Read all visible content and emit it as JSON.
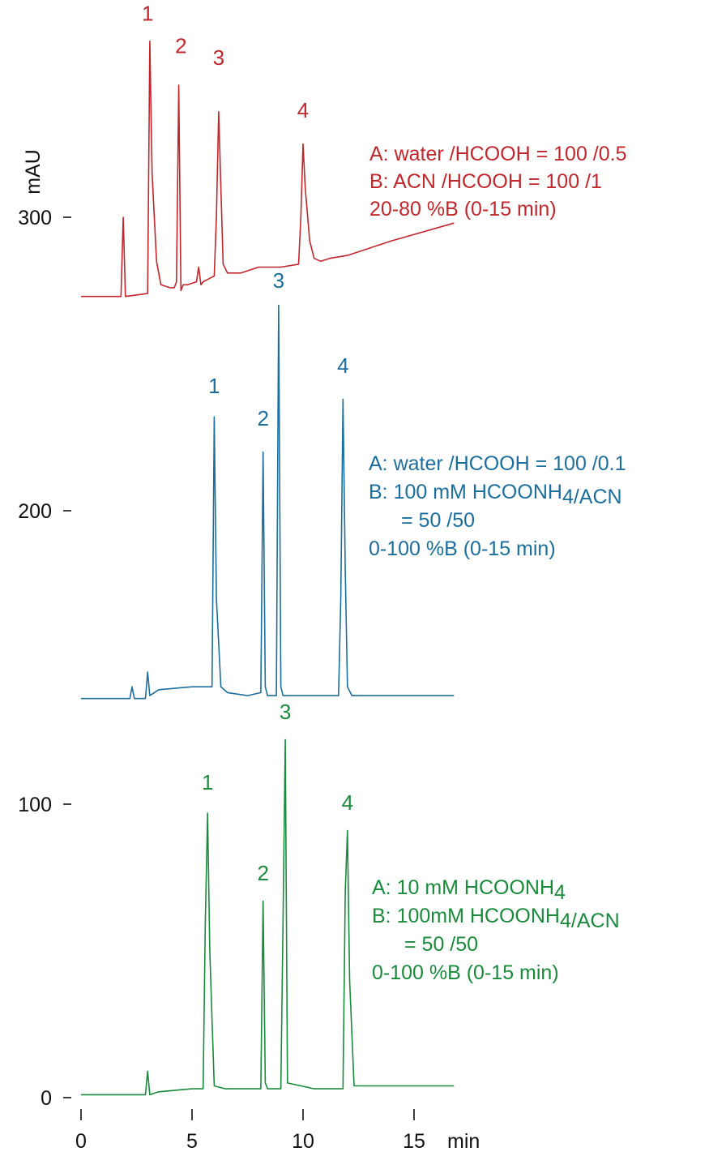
{
  "chart_data": {
    "type": "line",
    "title": "",
    "ylabel": "mAU",
    "xunit": "min",
    "xlim": [
      0,
      16.8
    ],
    "ylim": [
      0,
      380
    ],
    "x_ticks": [
      0,
      5,
      10,
      15
    ],
    "y_ticks": [
      0,
      100,
      200,
      300
    ],
    "series": [
      {
        "color": "#c0272d",
        "x": [
          0,
          1.8,
          1.9,
          2.0,
          3.0,
          3.1,
          3.2,
          3.4,
          3.6,
          4.0,
          4.2,
          4.3,
          4.4,
          4.5,
          4.6,
          4.8,
          5.2,
          5.3,
          5.4,
          5.5,
          6.0,
          6.1,
          6.2,
          6.3,
          6.4,
          6.6,
          6.8,
          7.2,
          8,
          9,
          9.8,
          9.9,
          10.0,
          10.1,
          10.3,
          10.5,
          10.8,
          11.2,
          12,
          14,
          16.8
        ],
        "y": [
          273,
          273,
          300,
          273,
          274,
          360,
          315,
          285,
          277,
          276,
          276,
          278,
          345,
          275,
          277,
          277,
          278,
          283,
          277,
          278,
          280,
          300,
          336,
          310,
          284,
          281,
          281,
          281,
          283,
          283,
          284,
          300,
          325,
          310,
          292,
          286,
          285,
          286,
          287,
          292,
          298
        ]
      },
      {
        "color": "#1c6e9c",
        "x": [
          0,
          2.2,
          2.3,
          2.4,
          2.9,
          3.0,
          3.1,
          3.5,
          5,
          5.9,
          6.0,
          6.1,
          6.3,
          6.6,
          7.5,
          8.1,
          8.2,
          8.3,
          8.4,
          8.8,
          8.9,
          9.0,
          9.1,
          10.5,
          11.6,
          11.7,
          11.8,
          11.9,
          12.0,
          12.2,
          14,
          16.8
        ],
        "y": [
          136,
          136,
          140,
          136,
          136,
          145,
          137,
          139,
          140,
          140,
          232,
          170,
          140,
          138,
          137,
          138,
          220,
          140,
          137,
          137,
          270,
          140,
          137,
          137,
          137,
          170,
          238,
          180,
          140,
          137,
          137,
          137
        ]
      },
      {
        "color": "#1a8a3c",
        "x": [
          0,
          2.9,
          3.0,
          3.1,
          3.5,
          5,
          5.5,
          5.6,
          5.7,
          5.8,
          6.0,
          6.5,
          7.5,
          8.1,
          8.2,
          8.3,
          8.4,
          9.0,
          9.1,
          9.2,
          9.3,
          10.5,
          11.8,
          11.9,
          12.0,
          12.1,
          12.3,
          14,
          16.8
        ],
        "y": [
          1,
          1,
          9,
          1,
          2,
          3,
          3,
          60,
          97,
          50,
          4,
          3,
          3,
          3,
          67,
          5,
          3,
          3,
          60,
          122,
          5,
          3,
          3,
          70,
          91,
          40,
          4,
          4,
          4
        ]
      }
    ],
    "peak_labels": [
      {
        "series": 0,
        "text": "1",
        "x": 3.0,
        "y": 367
      },
      {
        "series": 0,
        "text": "2",
        "x": 4.5,
        "y": 356
      },
      {
        "series": 0,
        "text": "3",
        "x": 6.2,
        "y": 352
      },
      {
        "series": 0,
        "text": "4",
        "x": 10.0,
        "y": 334
      },
      {
        "series": 1,
        "text": "1",
        "x": 6.0,
        "y": 240
      },
      {
        "series": 1,
        "text": "2",
        "x": 8.2,
        "y": 229
      },
      {
        "series": 1,
        "text": "3",
        "x": 8.9,
        "y": 276
      },
      {
        "series": 1,
        "text": "4",
        "x": 11.8,
        "y": 247
      },
      {
        "series": 2,
        "text": "1",
        "x": 5.7,
        "y": 105
      },
      {
        "series": 2,
        "text": "2",
        "x": 8.2,
        "y": 74
      },
      {
        "series": 2,
        "text": "3",
        "x": 9.2,
        "y": 129
      },
      {
        "series": 2,
        "text": "4",
        "x": 12.0,
        "y": 98
      }
    ],
    "annotations": [
      {
        "series": 0,
        "lines": [
          "A: water /HCOOH = 100 /0.5",
          "B: ACN /HCOOH = 100 /1",
          "20-80 %B (0-15 min)"
        ]
      },
      {
        "series": 1,
        "lines": [
          "A: water /HCOOH = 100 /0.1",
          "B: 100 mM HCOONH4 /ACN",
          "    = 50 /50",
          "0-100 %B (0-15 min)"
        ]
      },
      {
        "series": 2,
        "lines": [
          "A: 10 mM HCOONH4",
          "B: 100mM HCOONH4 /ACN",
          "    = 50 /50",
          "0-100 %B (0-15 min)"
        ]
      }
    ]
  }
}
